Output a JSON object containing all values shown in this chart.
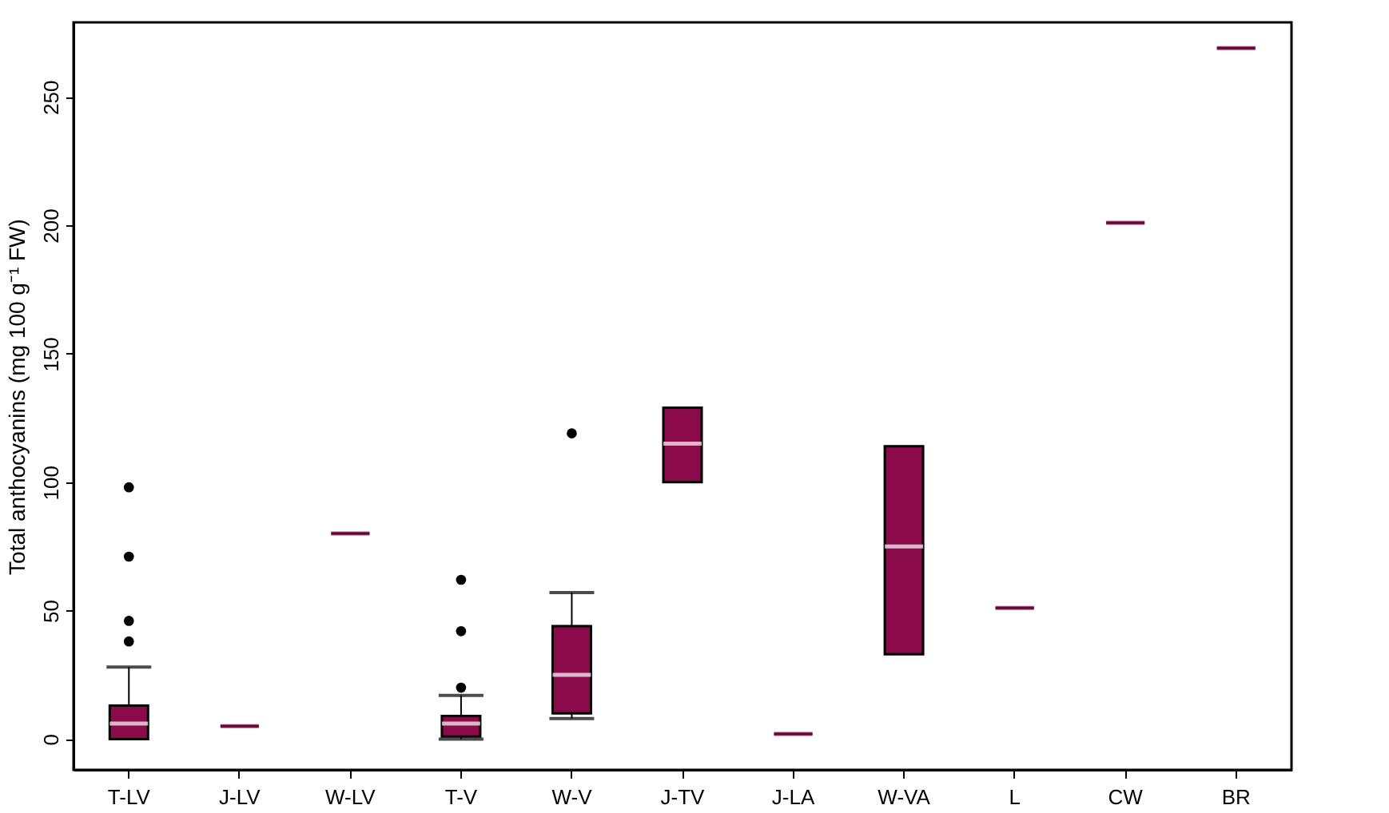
{
  "chart_data": {
    "type": "box",
    "ylabel": "Total anthocyanins (mg 100 g⁻¹ FW)",
    "color": "#8b0a4a",
    "categories": [
      "T-LV",
      "J-LV",
      "W-LV",
      "T-V",
      "W-V",
      "J-TV",
      "J-LA",
      "W-VA",
      "L",
      "CW",
      "BR"
    ],
    "ylim": [
      -12,
      279
    ],
    "yticks": [
      0,
      50,
      100,
      150,
      200,
      250
    ],
    "boxes": [
      {
        "low": 0,
        "q1": 0,
        "median": 6,
        "q3": 13,
        "high": 28,
        "outliers": [
          38,
          46,
          71,
          98
        ]
      },
      {
        "low": 5,
        "q1": 5,
        "median": 5,
        "q3": 5,
        "high": 5
      },
      {
        "low": 80,
        "q1": 80,
        "median": 80,
        "q3": 80,
        "high": 80
      },
      {
        "low": 0,
        "q1": 1,
        "median": 6,
        "q3": 9,
        "high": 17,
        "outliers": [
          20,
          42,
          62
        ]
      },
      {
        "low": 8,
        "q1": 10,
        "median": 25,
        "q3": 44,
        "high": 57,
        "outliers": [
          119
        ]
      },
      {
        "low": 100,
        "q1": 100,
        "median": 115,
        "q3": 129,
        "high": 129
      },
      {
        "low": 2,
        "q1": 2,
        "median": 2,
        "q3": 2,
        "high": 2
      },
      {
        "low": 33,
        "q1": 33,
        "median": 75,
        "q3": 114,
        "high": 114
      },
      {
        "low": 51,
        "q1": 51,
        "median": 51,
        "q3": 51,
        "high": 51
      },
      {
        "low": 201,
        "q1": 201,
        "median": 201,
        "q3": 201,
        "high": 201
      },
      {
        "low": 269,
        "q1": 269,
        "median": 269,
        "q3": 269,
        "high": 269
      }
    ]
  }
}
